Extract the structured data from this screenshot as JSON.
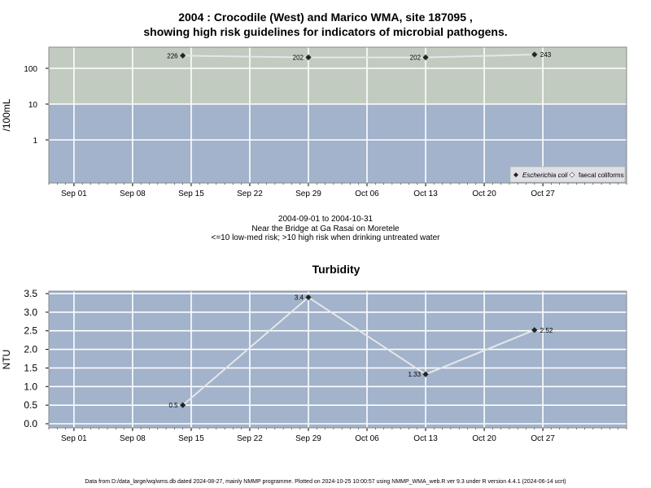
{
  "chart_data": [
    {
      "type": "scatter",
      "title_line1": "2004 : Crocodile (West) and Marico WMA, site 187095 ,",
      "title_line2": "showing high risk guidelines for indicators of microbial pathogens.",
      "ylabel": "/100mL",
      "yscale": "log",
      "yticks": [
        1,
        10,
        100
      ],
      "ytick_labels": [
        "1",
        "10",
        "100"
      ],
      "xticks": [
        "Sep 01",
        "Sep 08",
        "Sep 15",
        "Sep 22",
        "Sep 29",
        "Oct 06",
        "Oct 13",
        "Oct 20",
        "Oct 27"
      ],
      "xlim": [
        "2004-08-29",
        "2004-11-06"
      ],
      "bands": [
        {
          "from": 10,
          "to": 1000,
          "color": "#c2cbbf"
        },
        {
          "from": 0.01,
          "to": 10,
          "color": "#a2b3cb"
        }
      ],
      "series": [
        {
          "name": "Escherichia coli",
          "x": [
            "2004-09-14",
            "2004-09-29",
            "2004-10-13",
            "2004-10-26"
          ],
          "y": [
            226,
            202,
            202,
            243
          ],
          "labels": [
            "226",
            "202",
            "202",
            "243"
          ]
        }
      ],
      "legend": {
        "position": "bottom-right",
        "entries": [
          "Escherichia coli",
          "faecal coliforms"
        ]
      },
      "grid": true
    },
    {
      "type": "line",
      "title": "Turbidity",
      "ylabel": "NTU",
      "ylim": [
        -0.1,
        3.55
      ],
      "yticks": [
        0.0,
        0.5,
        1.0,
        1.5,
        2.0,
        2.5,
        3.0,
        3.5
      ],
      "ytick_labels": [
        "0.0",
        "0.5",
        "1.0",
        "1.5",
        "2.0",
        "2.5",
        "3.0",
        "3.5"
      ],
      "xticks": [
        "Sep 01",
        "Sep 08",
        "Sep 15",
        "Sep 22",
        "Sep 29",
        "Oct 06",
        "Oct 13",
        "Oct 20",
        "Oct 27"
      ],
      "xlim": [
        "2004-08-29",
        "2004-11-06"
      ],
      "series": [
        {
          "x": [
            "2004-09-14",
            "2004-09-29",
            "2004-10-13",
            "2004-10-26"
          ],
          "y": [
            0.5,
            3.4,
            1.33,
            2.52
          ],
          "labels": [
            "0.5",
            "3.4",
            "1.33",
            "2.52"
          ]
        }
      ],
      "grid": true
    }
  ],
  "caption": {
    "date_range": "2004-09-01 to 2004-10-31",
    "location": "Near the Bridge at Ga Rasai on Moretele",
    "risk_note": "<=10 low-med risk; >10 high risk when drinking untreated water"
  },
  "footer": "Data from D:/data_large/wq/wms.db dated 2024-08-27, mainly NMMP programme. Plotted on 2024-10-25 10:00:57 using NMMP_WMA_web.R ver 9.3 under R version 4.4.1 (2024-06-14 ucrt)"
}
